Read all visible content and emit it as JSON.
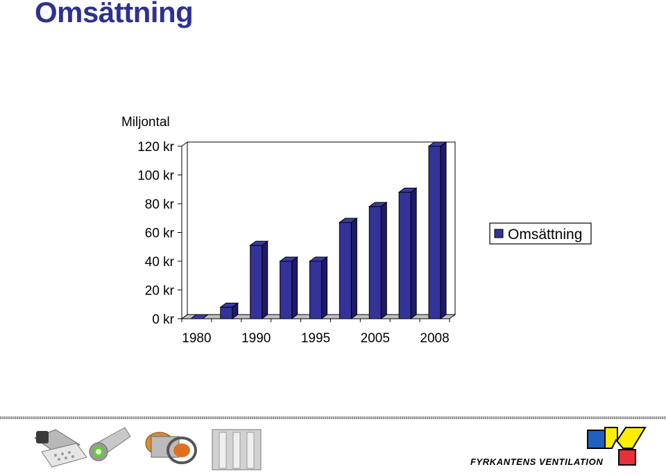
{
  "page": {
    "title": "Omsättning"
  },
  "chart_data": {
    "type": "bar",
    "title": "",
    "ylabel": "Miljontal",
    "xlabel": "",
    "y_ticks": [
      "0 kr",
      "20 kr",
      "40 kr",
      "60 kr",
      "80 kr",
      "100 kr",
      "120 kr"
    ],
    "x_tick_labels": [
      "1980",
      "1990",
      "1995",
      "2005",
      "2008"
    ],
    "ylim": [
      0,
      120
    ],
    "categories": [
      "1980",
      "",
      "1990",
      "",
      "1995",
      "",
      "2005",
      "",
      "2008"
    ],
    "series": [
      {
        "name": "Omsättning",
        "color": "#333399",
        "values": [
          0,
          8,
          51,
          40,
          40,
          67,
          78,
          88,
          120
        ]
      }
    ],
    "legend": {
      "placement": "right",
      "label": "Omsättning"
    },
    "grid": false,
    "style": "3d-column"
  },
  "footer": {
    "company_name": "FYRKANTENS VENTILATION",
    "logo_colors": [
      "#2060c0",
      "#ffee00",
      "#e8303a"
    ]
  }
}
